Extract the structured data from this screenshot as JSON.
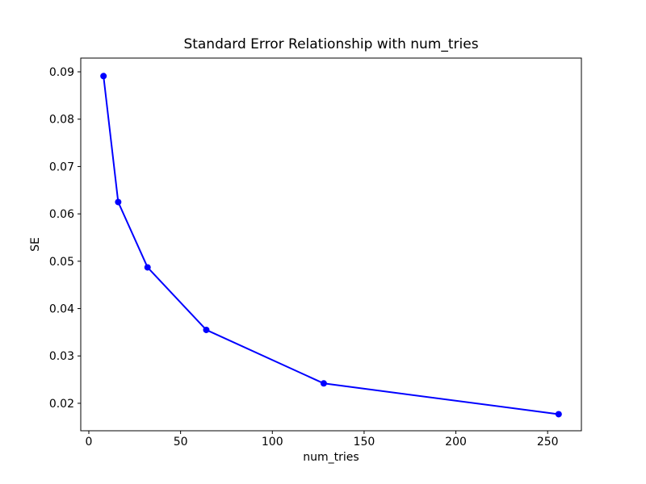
{
  "chart_data": {
    "type": "line",
    "title": "Standard Error Relationship with num_tries",
    "xlabel": "num_tries",
    "ylabel": "SE",
    "x": [
      8,
      16,
      32,
      64,
      128,
      256
    ],
    "y": [
      0.0891,
      0.0625,
      0.0487,
      0.0355,
      0.0242,
      0.0177
    ],
    "xlim": [
      -4.4,
      268.4
    ],
    "ylim": [
      0.0142,
      0.0929
    ],
    "xticks": {
      "values": [
        0,
        50,
        100,
        150,
        200,
        250
      ],
      "labels": [
        "0",
        "50",
        "100",
        "150",
        "200",
        "250"
      ]
    },
    "yticks": {
      "values": [
        0.02,
        0.03,
        0.04,
        0.05,
        0.06,
        0.07,
        0.08,
        0.09
      ],
      "labels": [
        "0.02",
        "0.03",
        "0.04",
        "0.05",
        "0.06",
        "0.07",
        "0.08",
        "0.09"
      ]
    },
    "line_color": "#0000ff",
    "marker": "circle",
    "marker_radius": 4,
    "line_width": 2,
    "grid": false,
    "legend_position": "none",
    "background_color": "#ffffff",
    "spine_color": "#000000"
  }
}
